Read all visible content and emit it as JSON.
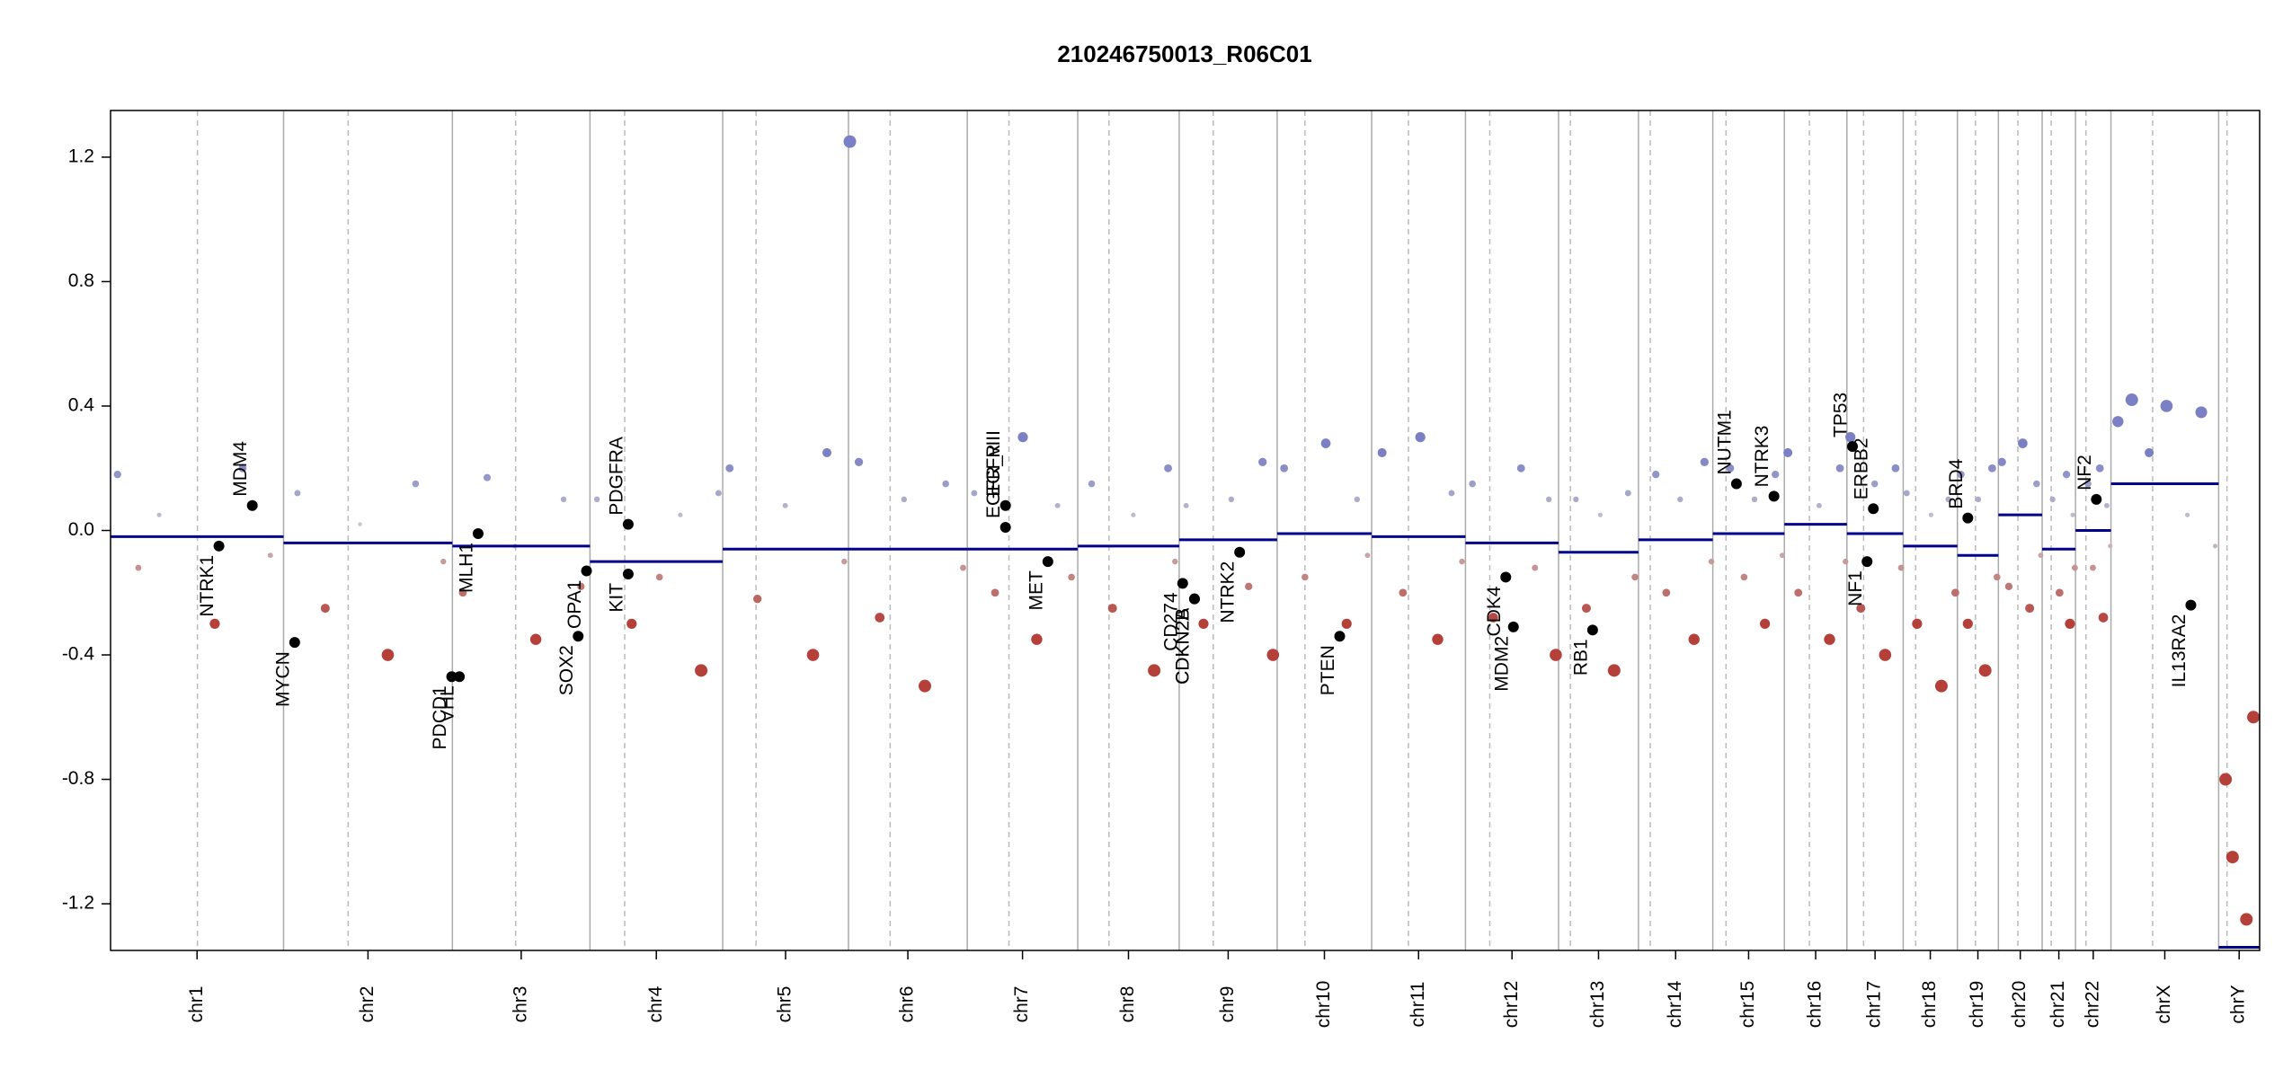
{
  "chart_data": {
    "type": "cnv",
    "title": "210246750013_R06C01",
    "xlim": [
      0,
      3093
    ],
    "ylim": [
      -1.35,
      1.35
    ],
    "yticks": [
      -1.2,
      -0.8,
      -0.4,
      {
        "value": 0,
        "label": "0.0"
      },
      0.4,
      0.8,
      1.2
    ],
    "gain_color": "#7b7fc4",
    "loss_color": "#b5403a",
    "neutral_color": "#cccccc",
    "segment_color": "#00008b",
    "chromosomes": [
      {
        "name": "chr1",
        "length": 249,
        "centromere": 125,
        "segment": -0.02
      },
      {
        "name": "chr2",
        "length": 243,
        "centromere": 93,
        "segment": -0.04
      },
      {
        "name": "chr3",
        "length": 198,
        "centromere": 91,
        "segment": -0.05
      },
      {
        "name": "chr4",
        "length": 191,
        "centromere": 50,
        "segment": -0.1
      },
      {
        "name": "chr5",
        "length": 181,
        "centromere": 48,
        "segment": -0.06
      },
      {
        "name": "chr6",
        "length": 171,
        "centromere": 60,
        "segment": -0.06
      },
      {
        "name": "chr7",
        "length": 159,
        "centromere": 60,
        "segment": -0.06
      },
      {
        "name": "chr8",
        "length": 146,
        "centromere": 45,
        "segment": -0.05
      },
      {
        "name": "chr9",
        "length": 141,
        "centromere": 49,
        "segment": -0.03
      },
      {
        "name": "chr10",
        "length": 136,
        "centromere": 40,
        "segment": -0.01
      },
      {
        "name": "chr11",
        "length": 135,
        "centromere": 53,
        "segment": -0.02
      },
      {
        "name": "chr12",
        "length": 134,
        "centromere": 35,
        "segment": -0.04
      },
      {
        "name": "chr13",
        "length": 115,
        "centromere": 17,
        "segment": -0.07
      },
      {
        "name": "chr14",
        "length": 107,
        "centromere": 17,
        "segment": -0.03
      },
      {
        "name": "chr15",
        "length": 103,
        "centromere": 19,
        "segment": -0.01
      },
      {
        "name": "chr16",
        "length": 90,
        "centromere": 36,
        "segment": 0.02
      },
      {
        "name": "chr17",
        "length": 81,
        "centromere": 24,
        "segment": -0.01
      },
      {
        "name": "chr18",
        "length": 78,
        "centromere": 18,
        "segment": -0.05
      },
      {
        "name": "chr19",
        "length": 59,
        "centromere": 26,
        "segment": -0.08
      },
      {
        "name": "chr20",
        "length": 63,
        "centromere": 28,
        "segment": 0.05
      },
      {
        "name": "chr21",
        "length": 48,
        "centromere": 13,
        "segment": -0.06
      },
      {
        "name": "chr22",
        "length": 51,
        "centromere": 15,
        "segment": 0.0
      },
      {
        "name": "chrX",
        "length": 155,
        "centromere": 60,
        "segment": 0.15
      },
      {
        "name": "chrY",
        "length": 59,
        "centromere": 12,
        "segment": -1.34
      }
    ],
    "genes": [
      {
        "name": "NTRK1",
        "chrom": 0,
        "pos": 156,
        "value": -0.05
      },
      {
        "name": "MDM4",
        "chrom": 0,
        "pos": 204,
        "value": 0.08
      },
      {
        "name": "MYCN",
        "chrom": 1,
        "pos": 16,
        "value": -0.36
      },
      {
        "name": "PDCD1",
        "chrom": 1,
        "pos": 242,
        "value": -0.47
      },
      {
        "name": "VHL",
        "chrom": 2,
        "pos": 10,
        "value": -0.47
      },
      {
        "name": "MLH1",
        "chrom": 2,
        "pos": 37,
        "value": -0.01
      },
      {
        "name": "SOX2",
        "chrom": 2,
        "pos": 181,
        "value": -0.34
      },
      {
        "name": "OPA1",
        "chrom": 2,
        "pos": 193,
        "value": -0.13
      },
      {
        "name": "KIT",
        "chrom": 3,
        "pos": 55,
        "value": -0.14
      },
      {
        "name": "PDGFRA",
        "chrom": 3,
        "pos": 55,
        "value": 0.02
      },
      {
        "name": "EGFR",
        "chrom": 6,
        "pos": 55,
        "value": 0.08
      },
      {
        "name": "EGFR_vIII",
        "chrom": 6,
        "pos": 55,
        "value": 0.01
      },
      {
        "name": "MET",
        "chrom": 6,
        "pos": 116,
        "value": -0.1
      },
      {
        "name": "CD274",
        "chrom": 8,
        "pos": 5,
        "value": -0.17
      },
      {
        "name": "CDKN2A",
        "chrom": 8,
        "pos": 22,
        "value": -0.22
      },
      {
        "name": "CDKN2B",
        "chrom": 8,
        "pos": 22,
        "value": -0.22
      },
      {
        "name": "NTRK2",
        "chrom": 8,
        "pos": 87,
        "value": -0.07
      },
      {
        "name": "PTEN",
        "chrom": 9,
        "pos": 90,
        "value": -0.34
      },
      {
        "name": "MDM2",
        "chrom": 11,
        "pos": 69,
        "value": -0.31
      },
      {
        "name": "CDK4",
        "chrom": 11,
        "pos": 58,
        "value": -0.15
      },
      {
        "name": "RB1",
        "chrom": 12,
        "pos": 49,
        "value": -0.32
      },
      {
        "name": "NUTM1",
        "chrom": 14,
        "pos": 34,
        "value": 0.15
      },
      {
        "name": "NTRK3",
        "chrom": 14,
        "pos": 88,
        "value": 0.11
      },
      {
        "name": "TP53",
        "chrom": 16,
        "pos": 8,
        "value": 0.27
      },
      {
        "name": "ERBB2",
        "chrom": 16,
        "pos": 38,
        "value": 0.07
      },
      {
        "name": "NF1",
        "chrom": 16,
        "pos": 29,
        "value": -0.1
      },
      {
        "name": "BRD4",
        "chrom": 18,
        "pos": 15,
        "value": 0.04
      },
      {
        "name": "NF2",
        "chrom": 21,
        "pos": 30,
        "value": 0.1
      },
      {
        "name": "IL13RA2",
        "chrom": 22,
        "pos": 115,
        "value": -0.24
      }
    ],
    "probes": [
      [
        0,
        10,
        0.18
      ],
      [
        0,
        40,
        -0.12
      ],
      [
        0,
        70,
        0.05
      ],
      [
        0,
        150,
        -0.3
      ],
      [
        0,
        190,
        0.2
      ],
      [
        0,
        230,
        -0.08
      ],
      [
        1,
        20,
        0.12
      ],
      [
        1,
        60,
        -0.25
      ],
      [
        1,
        110,
        0.02
      ],
      [
        1,
        150,
        -0.4
      ],
      [
        1,
        190,
        0.15
      ],
      [
        1,
        230,
        -0.1
      ],
      [
        2,
        15,
        -0.2
      ],
      [
        2,
        50,
        0.17
      ],
      [
        2,
        90,
        -0.05
      ],
      [
        2,
        120,
        -0.35
      ],
      [
        2,
        160,
        0.1
      ],
      [
        2,
        185,
        -0.18
      ],
      [
        3,
        10,
        0.1
      ],
      [
        3,
        60,
        -0.3
      ],
      [
        3,
        100,
        -0.15
      ],
      [
        3,
        130,
        0.05
      ],
      [
        3,
        160,
        -0.45
      ],
      [
        3,
        185,
        0.12
      ],
      [
        4,
        10,
        0.2
      ],
      [
        4,
        50,
        -0.22
      ],
      [
        4,
        90,
        0.08
      ],
      [
        4,
        130,
        -0.4
      ],
      [
        4,
        150,
        0.25
      ],
      [
        4,
        175,
        -0.1
      ],
      [
        5,
        2,
        1.25
      ],
      [
        5,
        15,
        0.22
      ],
      [
        5,
        45,
        -0.28
      ],
      [
        5,
        80,
        0.1
      ],
      [
        5,
        110,
        -0.5
      ],
      [
        5,
        140,
        0.15
      ],
      [
        5,
        165,
        -0.12
      ],
      [
        6,
        10,
        0.12
      ],
      [
        6,
        40,
        -0.2
      ],
      [
        6,
        80,
        0.3
      ],
      [
        6,
        100,
        -0.35
      ],
      [
        6,
        130,
        0.08
      ],
      [
        6,
        150,
        -0.15
      ],
      [
        7,
        20,
        0.15
      ],
      [
        7,
        50,
        -0.25
      ],
      [
        7,
        80,
        0.05
      ],
      [
        7,
        110,
        -0.45
      ],
      [
        7,
        130,
        0.2
      ],
      [
        7,
        140,
        -0.1
      ],
      [
        8,
        10,
        0.08
      ],
      [
        8,
        35,
        -0.3
      ],
      [
        8,
        75,
        0.1
      ],
      [
        8,
        100,
        -0.18
      ],
      [
        8,
        120,
        0.22
      ],
      [
        8,
        135,
        -0.4
      ],
      [
        9,
        10,
        0.2
      ],
      [
        9,
        40,
        -0.15
      ],
      [
        9,
        70,
        0.28
      ],
      [
        9,
        100,
        -0.3
      ],
      [
        9,
        115,
        0.1
      ],
      [
        9,
        130,
        -0.08
      ],
      [
        10,
        15,
        0.25
      ],
      [
        10,
        45,
        -0.2
      ],
      [
        10,
        70,
        0.3
      ],
      [
        10,
        95,
        -0.35
      ],
      [
        10,
        115,
        0.12
      ],
      [
        10,
        130,
        -0.1
      ],
      [
        11,
        10,
        0.15
      ],
      [
        11,
        40,
        -0.28
      ],
      [
        11,
        80,
        0.2
      ],
      [
        11,
        100,
        -0.12
      ],
      [
        11,
        120,
        0.1
      ],
      [
        11,
        130,
        -0.4
      ],
      [
        12,
        25,
        0.1
      ],
      [
        12,
        40,
        -0.25
      ],
      [
        12,
        60,
        0.05
      ],
      [
        12,
        80,
        -0.45
      ],
      [
        12,
        100,
        0.12
      ],
      [
        12,
        110,
        -0.15
      ],
      [
        13,
        25,
        0.18
      ],
      [
        13,
        40,
        -0.2
      ],
      [
        13,
        60,
        0.1
      ],
      [
        13,
        80,
        -0.35
      ],
      [
        13,
        95,
        0.22
      ],
      [
        13,
        105,
        -0.1
      ],
      [
        14,
        25,
        0.2
      ],
      [
        14,
        45,
        -0.15
      ],
      [
        14,
        60,
        0.1
      ],
      [
        14,
        75,
        -0.3
      ],
      [
        14,
        90,
        0.18
      ],
      [
        14,
        100,
        -0.08
      ],
      [
        15,
        5,
        0.25
      ],
      [
        15,
        20,
        -0.2
      ],
      [
        15,
        50,
        0.08
      ],
      [
        15,
        65,
        -0.35
      ],
      [
        15,
        80,
        0.2
      ],
      [
        15,
        88,
        -0.1
      ],
      [
        16,
        5,
        0.3
      ],
      [
        16,
        20,
        -0.25
      ],
      [
        16,
        40,
        0.15
      ],
      [
        16,
        55,
        -0.4
      ],
      [
        16,
        70,
        0.2
      ],
      [
        16,
        78,
        -0.12
      ],
      [
        17,
        5,
        0.12
      ],
      [
        17,
        20,
        -0.3
      ],
      [
        17,
        40,
        0.05
      ],
      [
        17,
        55,
        -0.5
      ],
      [
        17,
        65,
        0.1
      ],
      [
        17,
        75,
        -0.2
      ],
      [
        18,
        5,
        0.18
      ],
      [
        18,
        15,
        -0.3
      ],
      [
        18,
        30,
        0.1
      ],
      [
        18,
        40,
        -0.45
      ],
      [
        18,
        50,
        0.2
      ],
      [
        18,
        57,
        -0.15
      ],
      [
        19,
        5,
        0.22
      ],
      [
        19,
        15,
        -0.18
      ],
      [
        19,
        35,
        0.28
      ],
      [
        19,
        45,
        -0.25
      ],
      [
        19,
        55,
        0.15
      ],
      [
        19,
        61,
        -0.08
      ],
      [
        20,
        15,
        0.1
      ],
      [
        20,
        25,
        -0.2
      ],
      [
        20,
        35,
        0.18
      ],
      [
        20,
        40,
        -0.3
      ],
      [
        20,
        44,
        0.05
      ],
      [
        20,
        47,
        -0.12
      ],
      [
        21,
        18,
        0.15
      ],
      [
        21,
        25,
        -0.12
      ],
      [
        21,
        35,
        0.2
      ],
      [
        21,
        40,
        -0.28
      ],
      [
        21,
        45,
        0.08
      ],
      [
        21,
        50,
        -0.05
      ],
      [
        22,
        10,
        0.35
      ],
      [
        22,
        30,
        0.42
      ],
      [
        22,
        55,
        0.25
      ],
      [
        22,
        80,
        0.4
      ],
      [
        22,
        110,
        0.05
      ],
      [
        22,
        130,
        0.38
      ],
      [
        22,
        150,
        -0.05
      ],
      [
        23,
        10,
        -0.8
      ],
      [
        23,
        20,
        -1.05
      ],
      [
        23,
        40,
        -1.25
      ],
      [
        23,
        50,
        -0.6
      ]
    ]
  }
}
